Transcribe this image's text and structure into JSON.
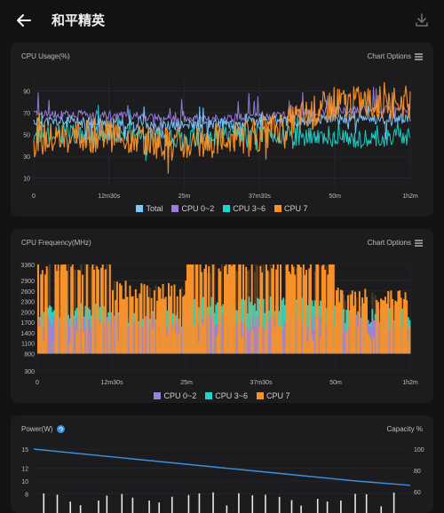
{
  "app": {
    "title": "和平精英"
  },
  "colors": {
    "total": "#7cc8ff",
    "cpu02": "#9b7fe0",
    "cpu36": "#1fd4c8",
    "cpu7": "#f7922b",
    "power": "#3d8fe0"
  },
  "icons": {
    "back": "arrow-left-icon",
    "download": "download-icon",
    "options": "menu-lines-icon",
    "power": "refresh-icon"
  },
  "cpu_usage_card": {
    "title": "CPU Usage(%)",
    "options_label": "Chart Options",
    "y_ticks": [
      "90",
      "70",
      "50",
      "30",
      "10"
    ],
    "x_ticks": [
      "0",
      "12m30s",
      "25m",
      "37m30s",
      "50m",
      "1h2m"
    ],
    "legend": [
      "Total",
      "CPU 0~2",
      "CPU 3~6",
      "CPU 7"
    ]
  },
  "cpu_freq_card": {
    "title": "CPU Frequency(MHz)",
    "options_label": "Chart Options",
    "y_ticks": [
      "3360",
      "2900",
      "2600",
      "2300",
      "2000",
      "1700",
      "1400",
      "1100",
      "800",
      "300"
    ],
    "x_ticks": [
      "0",
      "12m30s",
      "25m",
      "37m30s",
      "50m",
      "1h2m"
    ],
    "legend": [
      "CPU 0~2",
      "CPU 3~6",
      "CPU 7"
    ]
  },
  "power_card": {
    "title": "Power(W)",
    "right_label": "Capacity %",
    "y_ticks_left": [
      "15",
      "12",
      "10",
      "8"
    ],
    "y_ticks_right": [
      "100",
      "80",
      "60"
    ]
  },
  "chart_data": [
    {
      "type": "line",
      "title": "CPU Usage(%)",
      "x": [
        "0",
        "12m30s",
        "25m",
        "37m30s",
        "50m",
        "1h2m"
      ],
      "ylim": [
        0,
        100
      ],
      "series": [
        {
          "name": "Total",
          "values": [
            62,
            60,
            58,
            62,
            64,
            65
          ]
        },
        {
          "name": "CPU 0~2",
          "values": [
            68,
            68,
            63,
            66,
            72,
            74
          ]
        },
        {
          "name": "CPU 3~6",
          "values": [
            50,
            50,
            45,
            52,
            45,
            48
          ]
        },
        {
          "name": "CPU 7",
          "values": [
            45,
            50,
            40,
            50,
            78,
            80
          ]
        }
      ]
    },
    {
      "type": "bar",
      "title": "CPU Frequency(MHz)",
      "x": [
        "0",
        "12m30s",
        "25m",
        "37m30s",
        "50m",
        "1h2m"
      ],
      "ylim": [
        300,
        3360
      ],
      "series": [
        {
          "name": "CPU 0~2",
          "values": [
            1700,
            1700,
            1700,
            1700,
            1700,
            1700
          ]
        },
        {
          "name": "CPU 3~6",
          "values": [
            2000,
            1800,
            2200,
            2200,
            1900,
            2000
          ]
        },
        {
          "name": "CPU 7",
          "values": [
            3360,
            2600,
            3360,
            3360,
            2400,
            2600
          ]
        }
      ]
    },
    {
      "type": "line",
      "title": "Power(W)",
      "series": [
        {
          "name": "Capacity %",
          "values": [
            100,
            95,
            90,
            85,
            80,
            75,
            70,
            66
          ]
        }
      ]
    }
  ]
}
